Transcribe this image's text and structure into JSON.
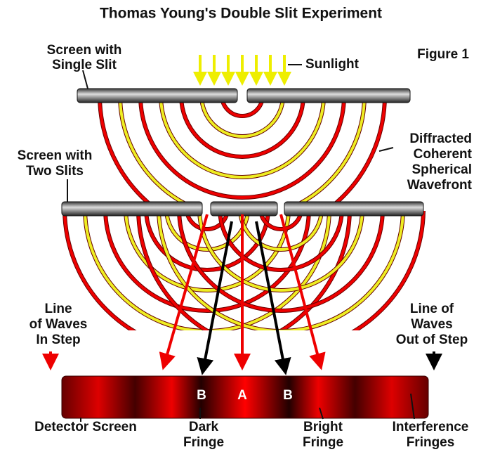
{
  "title": "Thomas Young's Double Slit Experiment",
  "figure_label": "Figure 1",
  "labels": {
    "single_slit": [
      "Screen with",
      "Single Slit"
    ],
    "sunlight": "Sunlight",
    "wavefront": [
      "Diffracted",
      "Coherent",
      "Spherical",
      "Wavefront"
    ],
    "two_slits": [
      "Screen with",
      "Two Slits"
    ],
    "in_step": [
      "Line",
      "of Waves",
      "In Step"
    ],
    "out_of_step": [
      "Line of",
      "Waves",
      "Out of Step"
    ],
    "detector": "Detector Screen",
    "dark": [
      "Dark",
      "Fringe"
    ],
    "bright": [
      "Bright",
      "Fringe"
    ],
    "interference": [
      "Interference",
      "Fringes"
    ]
  },
  "fringe_marks": [
    "B",
    "A",
    "B"
  ]
}
